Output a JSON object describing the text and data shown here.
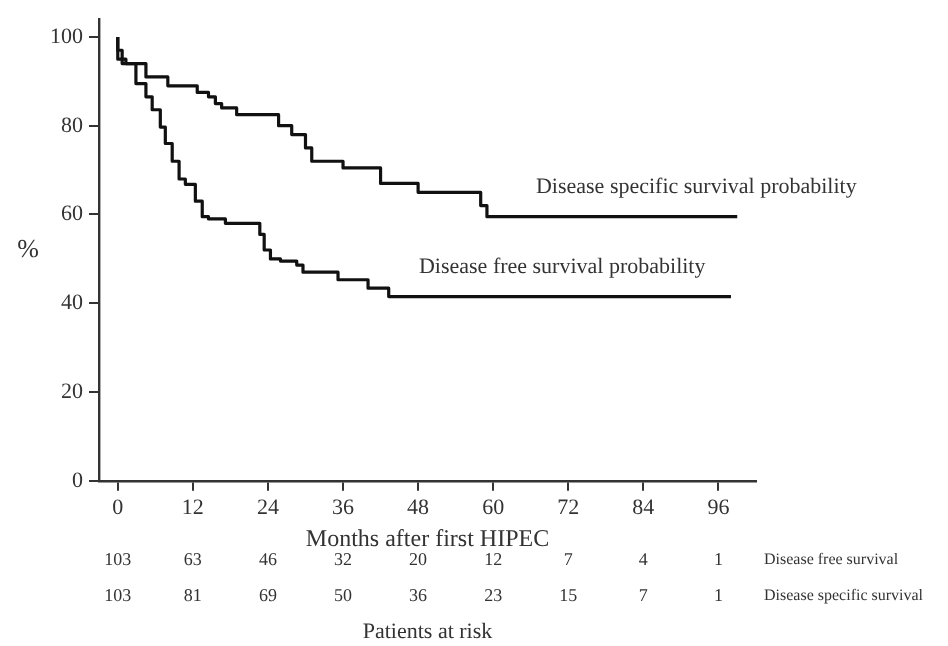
{
  "chart_data": {
    "type": "step",
    "xlabel": "Months after first HIPEC",
    "ylabel": "%",
    "xlim": [
      -3,
      102
    ],
    "xticks": [
      0,
      12,
      24,
      36,
      48,
      60,
      72,
      84,
      96
    ],
    "ylim": [
      0,
      104
    ],
    "yticks": [
      0,
      20,
      40,
      60,
      80,
      100
    ],
    "grid": false,
    "legend": false,
    "series": [
      {
        "name": "Disease specific survival probability",
        "color": "#111111",
        "x": [
          0,
          0.7,
          4.5,
          8,
          12.7,
          14.5,
          15.6,
          16.6,
          19,
          25.7,
          27.8,
          30,
          31,
          36,
          42,
          48,
          58,
          59,
          63,
          99
        ],
        "values": [
          100,
          97,
          94,
          91,
          89,
          87.5,
          86.5,
          85,
          84,
          82.5,
          80,
          78,
          75,
          72,
          70.5,
          67,
          65,
          62,
          59.5,
          59.5
        ]
      },
      {
        "name": "Disease free survival probability",
        "color": "#111111",
        "x": [
          0,
          1.3,
          2.9,
          4.5,
          5.5,
          6.8,
          7.6,
          8.7,
          9.8,
          10.8,
          12.4,
          13.5,
          14.5,
          17.2,
          22.7,
          23.4,
          24.4,
          26,
          28.6,
          29.6,
          35.2,
          40,
          43.3,
          44.3,
          98
        ],
        "values": [
          100,
          95,
          94,
          89.5,
          86.5,
          83.6,
          79.7,
          76,
          72,
          68,
          66.8,
          63,
          59.5,
          59,
          58,
          55.5,
          52,
          50,
          49.5,
          48.6,
          47,
          45.3,
          43.4,
          41.5,
          41.5
        ]
      }
    ],
    "annotations": [
      "103",
      "63",
      "46",
      "32",
      "20",
      "12",
      "7",
      "4",
      "1",
      "Disease free survival",
      "103",
      "81",
      "69",
      "50",
      "36",
      "23",
      "15",
      "7",
      "1",
      "Disease specific survival",
      "Patients at risk"
    ]
  }
}
